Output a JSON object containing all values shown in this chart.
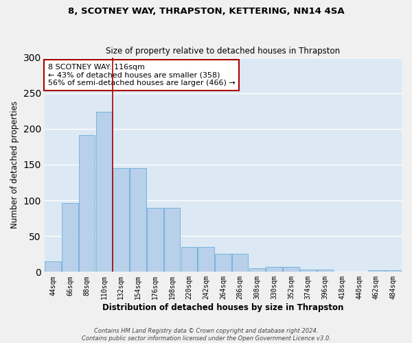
{
  "title1": "8, SCOTNEY WAY, THRAPSTON, KETTERING, NN14 4SA",
  "title2": "Size of property relative to detached houses in Thrapston",
  "xlabel": "Distribution of detached houses by size in Thrapston",
  "ylabel": "Number of detached properties",
  "categories": [
    "44sqm",
    "66sqm",
    "88sqm",
    "110sqm",
    "132sqm",
    "154sqm",
    "176sqm",
    "198sqm",
    "220sqm",
    "242sqm",
    "264sqm",
    "286sqm",
    "308sqm",
    "330sqm",
    "352sqm",
    "374sqm",
    "396sqm",
    "418sqm",
    "440sqm",
    "462sqm",
    "484sqm"
  ],
  "values": [
    15,
    96,
    191,
    224,
    145,
    145,
    90,
    90,
    35,
    35,
    25,
    25,
    5,
    7,
    7,
    3,
    3,
    0,
    0,
    2,
    2
  ],
  "bar_color": "#b8d0ea",
  "bar_edge_color": "#6aaed6",
  "vline_x": 3.5,
  "vline_color": "#aa0000",
  "annotation_text": "8 SCOTNEY WAY: 116sqm\n← 43% of detached houses are smaller (358)\n56% of semi-detached houses are larger (466) →",
  "annotation_box_color": "#ffffff",
  "annotation_box_edge": "#aa0000",
  "ylim": [
    0,
    300
  ],
  "yticks": [
    0,
    50,
    100,
    150,
    200,
    250,
    300
  ],
  "background_color": "#dce9f5",
  "fig_background": "#f0f0f0",
  "grid_color": "#ffffff",
  "footer": "Contains HM Land Registry data © Crown copyright and database right 2024.\nContains public sector information licensed under the Open Government Licence v3.0."
}
